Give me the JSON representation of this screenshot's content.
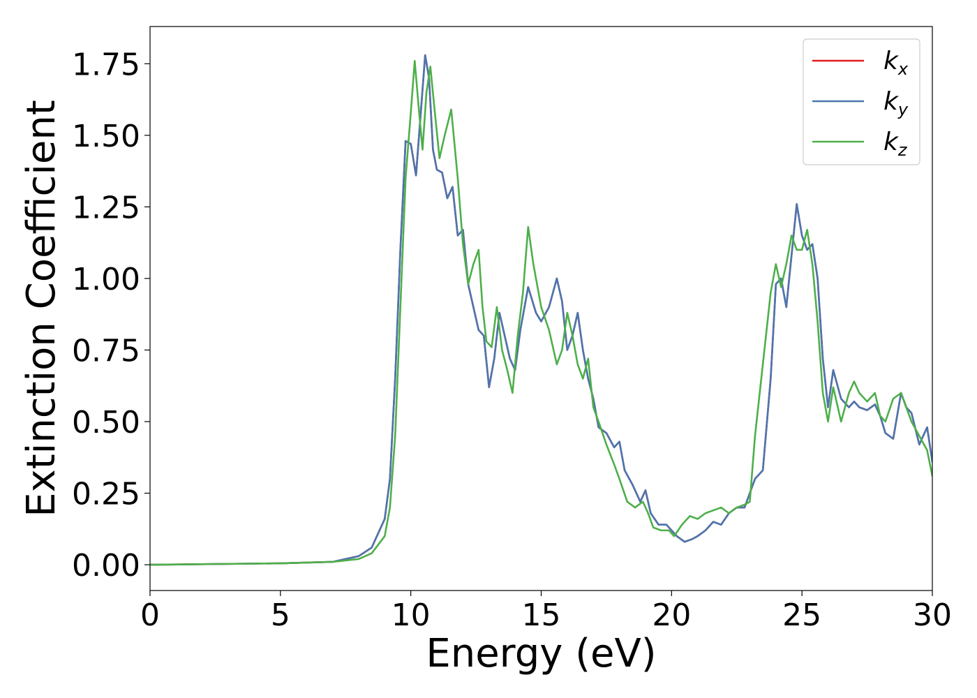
{
  "chart_data": {
    "type": "line",
    "xlabel": "Energy (eV)",
    "ylabel": "Extinction Coefficient",
    "xlim": [
      0,
      30
    ],
    "ylim": [
      -0.09,
      1.88
    ],
    "xticks": [
      0,
      5,
      10,
      15,
      20,
      25,
      30
    ],
    "xtick_labels": [
      "0",
      "5",
      "10",
      "15",
      "20",
      "25",
      "30"
    ],
    "yticks": [
      0.0,
      0.25,
      0.5,
      0.75,
      1.0,
      1.25,
      1.5,
      1.75
    ],
    "ytick_labels": [
      "0.00",
      "0.25",
      "0.50",
      "0.75",
      "1.00",
      "1.25",
      "1.50",
      "1.75"
    ],
    "grid": false,
    "legend_position": "top-right",
    "series": [
      {
        "name": "kx",
        "legend_main": "k",
        "legend_sub": "x",
        "color": "#e41a1c",
        "x": [
          0,
          5,
          7,
          8,
          8.5,
          9,
          9.2,
          9.4,
          9.6,
          9.8,
          10,
          10.2,
          10.4,
          10.55,
          10.7,
          10.85,
          11,
          11.2,
          11.4,
          11.6,
          11.8,
          12,
          12.2,
          12.4,
          12.6,
          12.8,
          13,
          13.2,
          13.4,
          13.6,
          13.8,
          14,
          14.2,
          14.5,
          14.8,
          15,
          15.3,
          15.6,
          15.8,
          16,
          16.2,
          16.4,
          16.6,
          16.8,
          17,
          17.2,
          17.5,
          17.8,
          18,
          18.2,
          18.5,
          18.8,
          19,
          19.2,
          19.5,
          19.8,
          20,
          20.2,
          20.5,
          20.8,
          21,
          21.3,
          21.6,
          21.9,
          22.2,
          22.5,
          22.8,
          23,
          23.2,
          23.5,
          23.8,
          24,
          24.2,
          24.4,
          24.6,
          24.8,
          25,
          25.2,
          25.4,
          25.6,
          25.8,
          26,
          26.2,
          26.5,
          26.8,
          27,
          27.2,
          27.5,
          27.8,
          28,
          28.2,
          28.5,
          28.8,
          29,
          29.2,
          29.5,
          29.8,
          30
        ],
        "y": [
          0.0,
          0.005,
          0.01,
          0.03,
          0.06,
          0.16,
          0.3,
          0.65,
          1.1,
          1.48,
          1.47,
          1.36,
          1.6,
          1.78,
          1.7,
          1.45,
          1.38,
          1.37,
          1.28,
          1.32,
          1.15,
          1.17,
          0.98,
          0.9,
          0.82,
          0.8,
          0.62,
          0.72,
          0.88,
          0.8,
          0.72,
          0.68,
          0.82,
          0.97,
          0.88,
          0.85,
          0.9,
          1.0,
          0.92,
          0.75,
          0.8,
          0.88,
          0.75,
          0.65,
          0.58,
          0.48,
          0.46,
          0.41,
          0.43,
          0.33,
          0.28,
          0.22,
          0.26,
          0.18,
          0.14,
          0.14,
          0.12,
          0.1,
          0.08,
          0.09,
          0.1,
          0.12,
          0.15,
          0.14,
          0.18,
          0.2,
          0.2,
          0.25,
          0.3,
          0.33,
          0.65,
          0.98,
          1.0,
          0.9,
          1.08,
          1.26,
          1.15,
          1.1,
          1.12,
          1.0,
          0.72,
          0.55,
          0.68,
          0.58,
          0.55,
          0.57,
          0.55,
          0.54,
          0.56,
          0.52,
          0.46,
          0.44,
          0.6,
          0.55,
          0.53,
          0.42,
          0.48,
          0.36
        ]
      },
      {
        "name": "ky",
        "legend_main": "k",
        "legend_sub": "y",
        "color": "#4a76b0",
        "x": [
          0,
          5,
          7,
          8,
          8.5,
          9,
          9.2,
          9.4,
          9.6,
          9.8,
          10,
          10.2,
          10.4,
          10.55,
          10.7,
          10.85,
          11,
          11.2,
          11.4,
          11.6,
          11.8,
          12,
          12.2,
          12.4,
          12.6,
          12.8,
          13,
          13.2,
          13.4,
          13.6,
          13.8,
          14,
          14.2,
          14.5,
          14.8,
          15,
          15.3,
          15.6,
          15.8,
          16,
          16.2,
          16.4,
          16.6,
          16.8,
          17,
          17.2,
          17.5,
          17.8,
          18,
          18.2,
          18.5,
          18.8,
          19,
          19.2,
          19.5,
          19.8,
          20,
          20.2,
          20.5,
          20.8,
          21,
          21.3,
          21.6,
          21.9,
          22.2,
          22.5,
          22.8,
          23,
          23.2,
          23.5,
          23.8,
          24,
          24.2,
          24.4,
          24.6,
          24.8,
          25,
          25.2,
          25.4,
          25.6,
          25.8,
          26,
          26.2,
          26.5,
          26.8,
          27,
          27.2,
          27.5,
          27.8,
          28,
          28.2,
          28.5,
          28.8,
          29,
          29.2,
          29.5,
          29.8,
          30
        ],
        "y": [
          0.0,
          0.005,
          0.01,
          0.03,
          0.06,
          0.16,
          0.3,
          0.65,
          1.1,
          1.48,
          1.47,
          1.36,
          1.6,
          1.78,
          1.7,
          1.45,
          1.38,
          1.37,
          1.28,
          1.32,
          1.15,
          1.17,
          0.98,
          0.9,
          0.82,
          0.8,
          0.62,
          0.72,
          0.88,
          0.8,
          0.72,
          0.68,
          0.82,
          0.97,
          0.88,
          0.85,
          0.9,
          1.0,
          0.92,
          0.75,
          0.8,
          0.88,
          0.75,
          0.65,
          0.58,
          0.48,
          0.46,
          0.41,
          0.43,
          0.33,
          0.28,
          0.22,
          0.26,
          0.18,
          0.14,
          0.14,
          0.12,
          0.1,
          0.08,
          0.09,
          0.1,
          0.12,
          0.15,
          0.14,
          0.18,
          0.2,
          0.2,
          0.25,
          0.3,
          0.33,
          0.65,
          0.98,
          1.0,
          0.9,
          1.08,
          1.26,
          1.15,
          1.1,
          1.12,
          1.0,
          0.72,
          0.55,
          0.68,
          0.58,
          0.55,
          0.57,
          0.55,
          0.54,
          0.56,
          0.52,
          0.46,
          0.44,
          0.6,
          0.55,
          0.53,
          0.42,
          0.48,
          0.36
        ]
      },
      {
        "name": "kz",
        "legend_main": "k",
        "legend_sub": "z",
        "color": "#4daf4a",
        "x": [
          0,
          5,
          7,
          8,
          8.5,
          9,
          9.2,
          9.4,
          9.6,
          9.8,
          10,
          10.15,
          10.3,
          10.45,
          10.6,
          10.75,
          10.9,
          11.1,
          11.3,
          11.55,
          11.8,
          12,
          12.2,
          12.4,
          12.6,
          12.75,
          12.9,
          13.1,
          13.3,
          13.5,
          13.7,
          13.9,
          14.1,
          14.3,
          14.5,
          14.7,
          15,
          15.3,
          15.6,
          15.8,
          16,
          16.2,
          16.4,
          16.6,
          16.8,
          17,
          17.2,
          17.5,
          17.8,
          18,
          18.3,
          18.6,
          18.9,
          19.1,
          19.3,
          19.6,
          19.9,
          20.1,
          20.4,
          20.7,
          21,
          21.3,
          21.6,
          21.9,
          22.2,
          22.5,
          22.8,
          23,
          23.2,
          23.5,
          23.8,
          24,
          24.2,
          24.4,
          24.6,
          24.8,
          25,
          25.2,
          25.4,
          25.6,
          25.8,
          26,
          26.2,
          26.5,
          26.8,
          27,
          27.2,
          27.5,
          27.8,
          28,
          28.2,
          28.5,
          28.8,
          29,
          29.2,
          29.5,
          29.8,
          30
        ],
        "y": [
          0.0,
          0.005,
          0.01,
          0.02,
          0.04,
          0.1,
          0.2,
          0.45,
          0.9,
          1.35,
          1.58,
          1.76,
          1.6,
          1.45,
          1.65,
          1.74,
          1.6,
          1.42,
          1.5,
          1.59,
          1.35,
          1.12,
          0.98,
          1.05,
          1.1,
          0.9,
          0.78,
          0.76,
          0.9,
          0.75,
          0.68,
          0.6,
          0.8,
          0.95,
          1.18,
          1.05,
          0.9,
          0.82,
          0.7,
          0.75,
          0.88,
          0.8,
          0.7,
          0.65,
          0.72,
          0.55,
          0.5,
          0.42,
          0.35,
          0.3,
          0.22,
          0.2,
          0.22,
          0.18,
          0.13,
          0.12,
          0.12,
          0.1,
          0.14,
          0.17,
          0.16,
          0.18,
          0.19,
          0.2,
          0.18,
          0.2,
          0.21,
          0.22,
          0.45,
          0.7,
          0.95,
          1.05,
          0.97,
          1.05,
          1.15,
          1.1,
          1.1,
          1.17,
          1.05,
          0.85,
          0.6,
          0.5,
          0.62,
          0.5,
          0.6,
          0.64,
          0.6,
          0.57,
          0.6,
          0.52,
          0.5,
          0.58,
          0.6,
          0.55,
          0.5,
          0.45,
          0.4,
          0.31
        ]
      }
    ]
  }
}
